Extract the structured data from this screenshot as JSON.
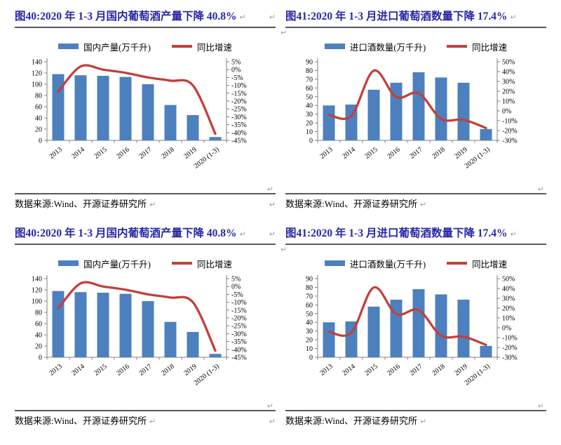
{
  "marks": {
    "return": "↵"
  },
  "colors": {
    "title_blue": "#2828A5",
    "bar": "#4D80BE",
    "line": "#C2403B",
    "axis": "#808080",
    "rule": "#595959",
    "mark_gray": "#99A0AB",
    "text": "#000000",
    "background": "#ffffff"
  },
  "layout_grid": [
    0,
    1,
    0,
    1
  ],
  "chart_data": [
    {
      "type": "bar",
      "id": "fig40",
      "title": "图40:2020 年 1-3 月国内葡萄酒产量下降 40.8%",
      "source_label": "数据来源:Wind、开源证券研究所",
      "legend_position": "top",
      "grid": false,
      "categories": [
        "2013",
        "2014",
        "2015",
        "2016",
        "2017",
        "2018",
        "2019",
        "2020 (1-3)"
      ],
      "series": [
        {
          "name": "国内产量(万千升)",
          "type": "bar",
          "axis": "left",
          "values": [
            118,
            116,
            115,
            113,
            100,
            63,
            45,
            6
          ]
        },
        {
          "name": "同比增速",
          "type": "line",
          "axis": "right",
          "values": [
            -14,
            2,
            0,
            -2,
            -5,
            -7,
            -10,
            -40.8
          ]
        }
      ],
      "left_axis": {
        "min": 0,
        "max": 140,
        "step": 20,
        "labels": [
          "140",
          "120",
          "100",
          "80",
          "60",
          "40",
          "20",
          "0"
        ]
      },
      "right_axis": {
        "min": -45,
        "max": 5,
        "step": 5,
        "labels": [
          "5%",
          "0%",
          "-5%",
          "-10%",
          "-15%",
          "-20%",
          "-25%",
          "-30%",
          "-35%",
          "-40%",
          "-45%"
        ]
      }
    },
    {
      "type": "bar",
      "id": "fig41",
      "title": "图41:2020 年 1-3 月进口葡萄酒数量下降 17.4%",
      "source_label": "数据来源:Wind、开源证券研究所",
      "legend_position": "top",
      "grid": false,
      "categories": [
        "2013",
        "2014",
        "2015",
        "2016",
        "2017",
        "2018",
        "2019",
        "2020 (1-3)"
      ],
      "series": [
        {
          "name": "进口酒数量(万千升)",
          "type": "bar",
          "axis": "left",
          "values": [
            40,
            41,
            58,
            66,
            78,
            72,
            66,
            13
          ]
        },
        {
          "name": "同比增速",
          "type": "line",
          "axis": "right",
          "values": [
            -4,
            -5,
            41,
            14,
            18,
            -8,
            -9,
            -17.4
          ]
        }
      ],
      "left_axis": {
        "min": 0,
        "max": 90,
        "step": 10,
        "labels": [
          "90",
          "80",
          "70",
          "60",
          "50",
          "40",
          "30",
          "20",
          "10",
          "0"
        ]
      },
      "right_axis": {
        "min": -30,
        "max": 50,
        "step": 10,
        "labels": [
          "50%",
          "40%",
          "30%",
          "20%",
          "10%",
          "0%",
          "-10%",
          "-20%",
          "-30%"
        ]
      }
    }
  ]
}
